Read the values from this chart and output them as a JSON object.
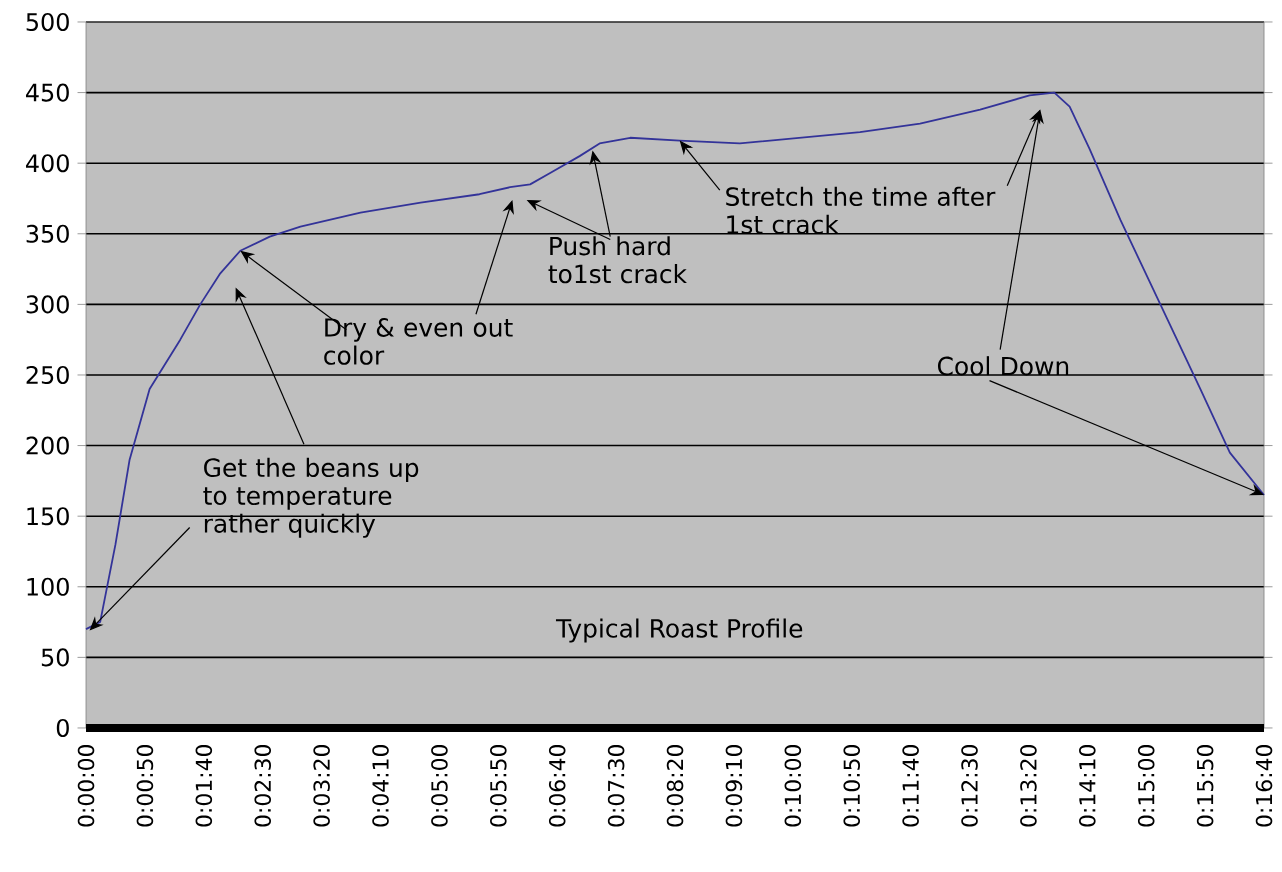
{
  "chart_data": {
    "type": "line",
    "title": "Typical Roast Profile",
    "annotations": [
      {
        "text": "Get the beans up to temperature rather quickly",
        "x": 3,
        "y": 69
      },
      {
        "text": "Dry & even out color",
        "x": 131,
        "y": 338
      },
      {
        "text": "Push hard to1st crack",
        "x": 430,
        "y": 409
      },
      {
        "text": "Stretch the time after 1st crack",
        "x": 504,
        "y": 416
      },
      {
        "text": "Cool Down",
        "x": 1000,
        "y": 165
      }
    ],
    "x": [
      0,
      12,
      25,
      37,
      54,
      80,
      97,
      114,
      131,
      156,
      182,
      233,
      284,
      334,
      360,
      377,
      394,
      419,
      436,
      462,
      504,
      555,
      606,
      657,
      708,
      759,
      801,
      822,
      835,
      852,
      878,
      912,
      946,
      971,
      1000
    ],
    "series": [
      {
        "color": "#333399",
        "values": [
          70,
          75,
          130,
          190,
          240,
          275,
          300,
          322,
          338,
          348,
          355,
          365,
          372,
          378,
          383,
          385,
          393,
          405,
          414,
          418,
          416,
          414,
          418,
          422,
          428,
          438,
          448,
          450,
          440,
          410,
          360,
          300,
          240,
          195,
          165
        ]
      }
    ],
    "xlim": [
      0,
      1000
    ],
    "xticks": [
      {
        "value": 0,
        "label": "0:00:00"
      },
      {
        "value": 50,
        "label": "0:00:50"
      },
      {
        "value": 100,
        "label": "0:01:40"
      },
      {
        "value": 150,
        "label": "0:02:30"
      },
      {
        "value": 200,
        "label": "0:03:20"
      },
      {
        "value": 250,
        "label": "0:04:10"
      },
      {
        "value": 300,
        "label": "0:05:00"
      },
      {
        "value": 350,
        "label": "0:05:50"
      },
      {
        "value": 400,
        "label": "0:06:40"
      },
      {
        "value": 450,
        "label": "0:07:30"
      },
      {
        "value": 500,
        "label": "0:08:20"
      },
      {
        "value": 550,
        "label": "0:09:10"
      },
      {
        "value": 600,
        "label": "0:10:00"
      },
      {
        "value": 650,
        "label": "0:10:50"
      },
      {
        "value": 700,
        "label": "0:11:40"
      },
      {
        "value": 750,
        "label": "0:12:30"
      },
      {
        "value": 800,
        "label": "0:13:20"
      },
      {
        "value": 850,
        "label": "0:14:10"
      },
      {
        "value": 900,
        "label": "0:15:00"
      },
      {
        "value": 950,
        "label": "0:15:50"
      },
      {
        "value": 1000,
        "label": "0:16:40"
      }
    ],
    "ylim": [
      0,
      500
    ],
    "yticks": [
      0,
      50,
      100,
      150,
      200,
      250,
      300,
      350,
      400,
      450,
      500
    ],
    "grid": "y",
    "line_style": "solid"
  }
}
